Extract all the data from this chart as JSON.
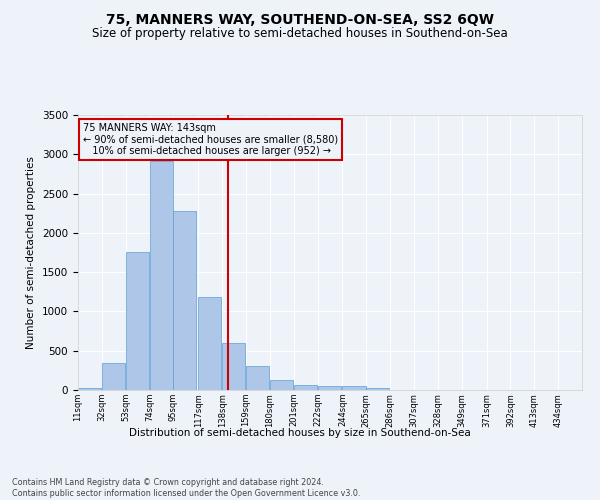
{
  "title": "75, MANNERS WAY, SOUTHEND-ON-SEA, SS2 6QW",
  "subtitle": "Size of property relative to semi-detached houses in Southend-on-Sea",
  "xlabel": "Distribution of semi-detached houses by size in Southend-on-Sea",
  "ylabel": "Number of semi-detached properties",
  "footer1": "Contains HM Land Registry data © Crown copyright and database right 2024.",
  "footer2": "Contains public sector information licensed under the Open Government Licence v3.0.",
  "property_size": 143,
  "property_label": "75 MANNERS WAY: 143sqm",
  "pct_smaller": 90,
  "n_smaller": 8580,
  "pct_larger": 10,
  "n_larger": 952,
  "bin_labels": [
    "11sqm",
    "32sqm",
    "53sqm",
    "74sqm",
    "95sqm",
    "117sqm",
    "138sqm",
    "159sqm",
    "180sqm",
    "201sqm",
    "222sqm",
    "244sqm",
    "265sqm",
    "286sqm",
    "307sqm",
    "328sqm",
    "349sqm",
    "371sqm",
    "392sqm",
    "413sqm",
    "434sqm"
  ],
  "bin_edges": [
    11,
    32,
    53,
    74,
    95,
    117,
    138,
    159,
    180,
    201,
    222,
    244,
    265,
    286,
    307,
    328,
    349,
    371,
    392,
    413,
    434
  ],
  "bar_values": [
    20,
    340,
    1750,
    2920,
    2280,
    1180,
    600,
    300,
    130,
    70,
    50,
    50,
    20,
    0,
    0,
    0,
    0,
    0,
    0,
    0
  ],
  "bar_color": "#aec6e8",
  "bar_edge_color": "#5a9fd4",
  "vline_x": 143,
  "vline_color": "#cc0000",
  "annotation_box_color": "#cc0000",
  "background_color": "#eef3fa",
  "grid_color": "#ffffff",
  "ylim": [
    0,
    3500
  ],
  "title_fontsize": 10,
  "subtitle_fontsize": 8.5
}
